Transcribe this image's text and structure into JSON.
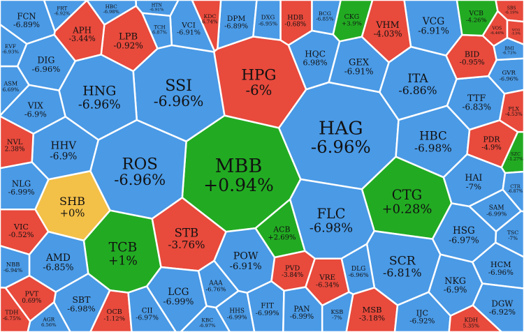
{
  "chart_data": {
    "type": "voronoi-treemap",
    "colors": {
      "down": "#4a9ae6",
      "up": "#22ab22",
      "flat": "#f3c048",
      "down_large": "#e84a3c"
    },
    "cells": [
      {
        "ticker": "MBB",
        "change": "+0.94%",
        "value": 0.94,
        "status": "up"
      },
      {
        "ticker": "HAG",
        "change": "-6.96%",
        "value": -6.96,
        "status": "down"
      },
      {
        "ticker": "ROS",
        "change": "-6.96%",
        "value": -6.96,
        "status": "down"
      },
      {
        "ticker": "SSI",
        "change": "-6.96%",
        "value": -6.96,
        "status": "down"
      },
      {
        "ticker": "HPG",
        "change": "-6%",
        "value": -6,
        "status": "down_large"
      },
      {
        "ticker": "HNG",
        "change": "-6.96%",
        "value": -6.96,
        "status": "down"
      },
      {
        "ticker": "TCB",
        "change": "+1%",
        "value": 1,
        "status": "up"
      },
      {
        "ticker": "CTG",
        "change": "+0.28%",
        "value": 0.28,
        "status": "up"
      },
      {
        "ticker": "FLC",
        "change": "-6.98%",
        "value": -6.98,
        "status": "down"
      },
      {
        "ticker": "SHB",
        "change": "+0%",
        "value": 0,
        "status": "flat"
      },
      {
        "ticker": "SCR",
        "change": "-6.81%",
        "value": -6.81,
        "status": "down"
      },
      {
        "ticker": "ITA",
        "change": "-6.86%",
        "value": -6.86,
        "status": "down"
      },
      {
        "ticker": "VCG",
        "change": "-6.91%",
        "value": -6.91,
        "status": "down"
      },
      {
        "ticker": "HBC",
        "change": "-6.98%",
        "value": -6.98,
        "status": "down"
      },
      {
        "ticker": "STB",
        "change": "-3.76%",
        "value": -3.76,
        "status": "down_large"
      },
      {
        "ticker": "AMD",
        "change": "-6.85%",
        "value": -6.85,
        "status": "down"
      },
      {
        "ticker": "HHV",
        "change": "-6.9%",
        "value": -6.9,
        "status": "down"
      },
      {
        "ticker": "DIG",
        "change": "-6.96%",
        "value": -6.96,
        "status": "down"
      },
      {
        "ticker": "LPB",
        "change": "-0.92%",
        "value": -0.92,
        "status": "down_large"
      },
      {
        "ticker": "POW",
        "change": "-6.91%",
        "value": -6.91,
        "status": "down"
      },
      {
        "ticker": "HSG",
        "change": "-6.97%",
        "value": -6.97,
        "status": "down"
      },
      {
        "ticker": "NKG",
        "change": "-6.9%",
        "value": -6.9,
        "status": "down"
      },
      {
        "ticker": "TTF",
        "change": "-6.83%",
        "value": -6.83,
        "status": "down"
      },
      {
        "ticker": "HAI",
        "change": "-7%",
        "value": -7,
        "status": "down"
      },
      {
        "ticker": "GEX",
        "change": "-6.91%",
        "value": -6.91,
        "status": "down"
      },
      {
        "ticker": "VHM",
        "change": "-4.03%",
        "value": -4.03,
        "status": "down_large"
      },
      {
        "ticker": "APH",
        "change": "-3.44%",
        "value": -3.44,
        "status": "down_large"
      },
      {
        "ticker": "FCN",
        "change": "-6.89%",
        "value": -6.89,
        "status": "down"
      },
      {
        "ticker": "NLG",
        "change": "-6.99%",
        "value": -6.99,
        "status": "down"
      },
      {
        "ticker": "VIC",
        "change": "-0.52%",
        "value": -0.52,
        "status": "down_large"
      },
      {
        "ticker": "VIX",
        "change": "-6.9%",
        "value": -6.9,
        "status": "down"
      },
      {
        "ticker": "LCG",
        "change": "-6.99%",
        "value": -6.99,
        "status": "down"
      },
      {
        "ticker": "SBT",
        "change": "-6.98%",
        "value": -6.98,
        "status": "down"
      },
      {
        "ticker": "HCM",
        "change": "-6.96%",
        "value": -6.96,
        "status": "down"
      },
      {
        "ticker": "VRE",
        "change": "-6.34%",
        "value": -6.34,
        "status": "down_large"
      },
      {
        "ticker": "MSB",
        "change": "-3.18%",
        "value": -3.18,
        "status": "down_large"
      },
      {
        "ticker": "BID",
        "change": "-0.95%",
        "value": -0.95,
        "status": "down_large"
      },
      {
        "ticker": "PDR",
        "change": "-4.9%",
        "value": -4.9,
        "status": "down_large"
      },
      {
        "ticker": "OCB",
        "change": "-1.12%",
        "value": -1.12,
        "status": "down_large"
      },
      {
        "ticker": "DGW",
        "change": "-6.92%",
        "value": -6.92,
        "status": "down"
      },
      {
        "ticker": "SAM",
        "change": "-6.99%",
        "value": -6.99,
        "status": "down"
      },
      {
        "ticker": "IJC",
        "change": "-6.92%",
        "value": -6.92,
        "status": "down"
      },
      {
        "ticker": "DPM",
        "change": "-6.89%",
        "value": -6.89,
        "status": "down"
      },
      {
        "ticker": "FIT",
        "change": "-6.99%",
        "value": -6.99,
        "status": "down"
      },
      {
        "ticker": "PAN",
        "change": "-6.99%",
        "value": -6.99,
        "status": "down"
      },
      {
        "ticker": "HDB",
        "change": "-0.68%",
        "value": -0.68,
        "status": "down_large"
      },
      {
        "ticker": "DXG",
        "change": "-6.95%",
        "value": -6.95,
        "status": "down"
      },
      {
        "ticker": "HQC",
        "change": "6.98%",
        "value": 6.98,
        "status": "down"
      },
      {
        "ticker": "BCG",
        "change": "-6.85%",
        "value": -6.85,
        "status": "down"
      },
      {
        "ticker": "CKG",
        "change": "+3.9%",
        "value": 3.9,
        "status": "up"
      },
      {
        "ticker": "VCB",
        "change": "-4.26%",
        "value": -4.26,
        "status": "up"
      },
      {
        "ticker": "PVD",
        "change": "-3.84%",
        "value": -3.84,
        "status": "down_large"
      },
      {
        "ticker": "DLG",
        "change": "-6.96%",
        "value": -6.96,
        "status": "down"
      },
      {
        "ticker": "HHS",
        "change": "-6.99%",
        "value": -6.99,
        "status": "down"
      },
      {
        "ticker": "AAA",
        "change": "-6.76%",
        "value": -6.76,
        "status": "down"
      },
      {
        "ticker": "CII",
        "change": "-6.97%",
        "value": -6.97,
        "status": "down"
      },
      {
        "ticker": "KSB",
        "change": "-7%",
        "value": -7,
        "status": "down"
      },
      {
        "ticker": "ACB",
        "change": "+2.69%",
        "value": 2.69,
        "status": "up"
      },
      {
        "ticker": "NVL",
        "change": "2.38%",
        "value": 2.38,
        "status": "down_large"
      },
      {
        "ticker": "VCI",
        "change": "-6.91%",
        "value": -6.91,
        "status": "down"
      },
      {
        "ticker": "PVT",
        "change": "0.69%",
        "value": 0.69,
        "status": "down_large"
      },
      {
        "ticker": "GVR",
        "change": "-6.96%",
        "value": -6.96,
        "status": "down"
      },
      {
        "ticker": "ASM",
        "change": "6.69%",
        "value": 6.69,
        "status": "down"
      },
      {
        "ticker": "TSC",
        "change": "-7%",
        "value": -7,
        "status": "down"
      },
      {
        "ticker": "SZC",
        "change": "-1.27%",
        "value": -1.27,
        "status": "up"
      },
      {
        "ticker": "KDH",
        "change": "5.35%",
        "value": 5.35,
        "status": "down_large"
      },
      {
        "ticker": "NBB",
        "change": "-6.94%",
        "value": -6.94,
        "status": "down"
      },
      {
        "ticker": "AGR",
        "change": "6.56%",
        "value": 6.56,
        "status": "down"
      },
      {
        "ticker": "KBC",
        "change": "-6.97%",
        "value": -6.97,
        "status": "down"
      },
      {
        "ticker": "EVF",
        "change": "-6.93%",
        "value": -6.93,
        "status": "down"
      },
      {
        "ticker": "TDH",
        "change": "-6.75%",
        "value": -6.75,
        "status": "down_large"
      },
      {
        "ticker": "SBS",
        "change": "-6.19%",
        "value": -6.19,
        "status": "down_large"
      },
      {
        "ticker": "BMI",
        "change": "-6.73%",
        "value": -6.73,
        "status": "down"
      },
      {
        "ticker": "PLX",
        "change": "-4.53%",
        "value": -4.53,
        "status": "down_large"
      },
      {
        "ticker": "VOS",
        "change": "-6.46%",
        "value": -6.46,
        "status": "down_large"
      },
      {
        "ticker": "VCG",
        "change": "-5.9%",
        "value": -5.9,
        "status": "down_large"
      },
      {
        "ticker": "CTR",
        "change": "-6.87%",
        "value": -6.87,
        "status": "down"
      },
      {
        "ticker": "KDC",
        "change": "6.74%",
        "value": 6.74,
        "status": "down_large"
      },
      {
        "ticker": "HTN",
        "change": "-6.91%",
        "value": -6.91,
        "status": "down"
      },
      {
        "ticker": "TCH",
        "change": "6.87%",
        "value": 6.87,
        "status": "down"
      },
      {
        "ticker": "HBC",
        "change": "-6.98%",
        "value": -6.98,
        "status": "down"
      },
      {
        "ticker": "FRT",
        "change": "-6.92%",
        "value": -6.92,
        "status": "down"
      }
    ]
  }
}
